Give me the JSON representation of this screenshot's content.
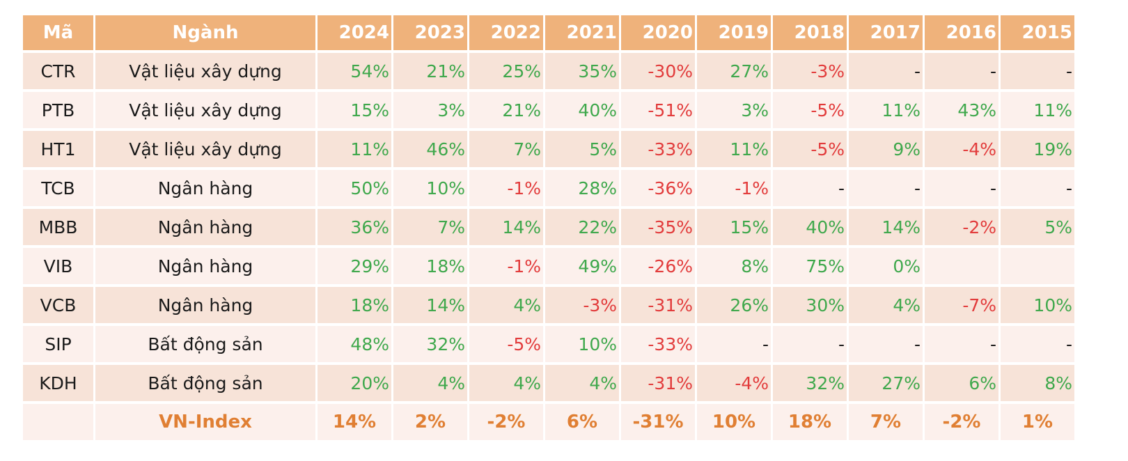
{
  "headers": [
    "Mã",
    "Ngành",
    "2024",
    "2023",
    "2022",
    "2021",
    "2020",
    "2019",
    "2018",
    "2017",
    "2016",
    "2015"
  ],
  "rows": [
    {
      "code": "CTR",
      "sector": "Vật liệu xây dựng",
      "values": [
        "54%",
        "21%",
        "25%",
        "35%",
        "-30%",
        "27%",
        "-3%",
        "-",
        "-",
        "-"
      ]
    },
    {
      "code": "PTB",
      "sector": "Vật liệu xây dựng",
      "values": [
        "15%",
        "3%",
        "21%",
        "40%",
        "-51%",
        "3%",
        "-5%",
        "11%",
        "43%",
        "11%"
      ]
    },
    {
      "code": "HT1",
      "sector": "Vật liệu xây dựng",
      "values": [
        "11%",
        "46%",
        "7%",
        "5%",
        "-33%",
        "11%",
        "-5%",
        "9%",
        "-4%",
        "19%"
      ]
    },
    {
      "code": "TCB",
      "sector": "Ngân hàng",
      "values": [
        "50%",
        "10%",
        "-1%",
        "28%",
        "-36%",
        "-1%",
        "-",
        "-",
        "-",
        "-"
      ]
    },
    {
      "code": "MBB",
      "sector": "Ngân hàng",
      "values": [
        "36%",
        "7%",
        "14%",
        "22%",
        "-35%",
        "15%",
        "40%",
        "14%",
        "-2%",
        "5%"
      ]
    },
    {
      "code": "VIB",
      "sector": "Ngân hàng",
      "values": [
        "29%",
        "18%",
        "-1%",
        "49%",
        "-26%",
        "8%",
        "75%",
        "0%",
        "",
        ""
      ]
    },
    {
      "code": "VCB",
      "sector": "Ngân hàng",
      "values": [
        "18%",
        "14%",
        "4%",
        "-3%",
        "-31%",
        "26%",
        "30%",
        "4%",
        "-7%",
        "10%"
      ]
    },
    {
      "code": "SIP",
      "sector": "Bất động sản",
      "values": [
        "48%",
        "32%",
        "-5%",
        "10%",
        "-33%",
        "-",
        "-",
        "-",
        "-",
        "-"
      ]
    },
    {
      "code": "KDH",
      "sector": "Bất động sản",
      "values": [
        "20%",
        "4%",
        "4%",
        "4%",
        "-31%",
        "-4%",
        "32%",
        "27%",
        "6%",
        "8%"
      ]
    }
  ],
  "index_row": {
    "code": "",
    "sector": "VN-Index",
    "values": [
      "14%",
      "2%",
      "-2%",
      "6%",
      "-31%",
      "10%",
      "18%",
      "7%",
      "-2%",
      "1%"
    ]
  },
  "colors": {
    "header_bg": "#efb27b",
    "row_odd": "#f7e3d8",
    "row_even": "#fcf0ec",
    "positive": "#3fa84c",
    "negative": "#e23b3b",
    "index_text": "#e07f33"
  }
}
